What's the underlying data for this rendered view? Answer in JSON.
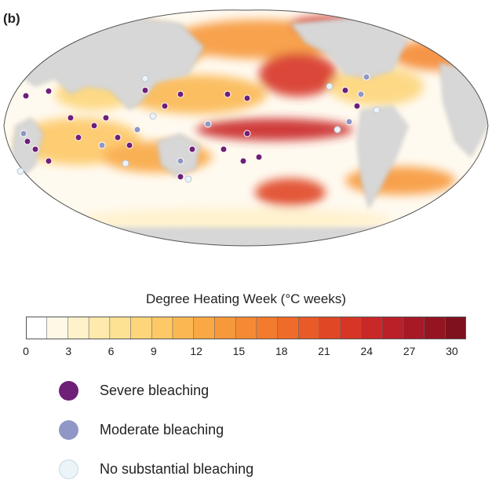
{
  "panel_label": "(b)",
  "colorbar": {
    "title": "Degree Heating Week (°C weeks)",
    "ticks": [
      "0",
      "3",
      "6",
      "9",
      "12",
      "15",
      "18",
      "21",
      "24",
      "27",
      "30"
    ],
    "min": 0,
    "max": 31,
    "colors": [
      "#ffffff",
      "#fff8e6",
      "#fff1c9",
      "#ffe9ad",
      "#fee293",
      "#fdd57a",
      "#fdc866",
      "#fbb852",
      "#f9a844",
      "#f7983b",
      "#f58a34",
      "#f27b2e",
      "#ee6b2a",
      "#e85a27",
      "#e04725",
      "#d73626",
      "#c92828",
      "#bb1f28",
      "#a81926",
      "#951422",
      "#7f111e"
    ]
  },
  "legend": [
    {
      "label": "Severe bleaching",
      "color": "#6e1f78"
    },
    {
      "label": "Moderate bleaching",
      "color": "#9097c6"
    },
    {
      "label": "No substantial bleaching",
      "color": "#ebf4f9"
    }
  ],
  "icons": {
    "land": "#d7d7d7",
    "ocean": "#ffffff"
  }
}
